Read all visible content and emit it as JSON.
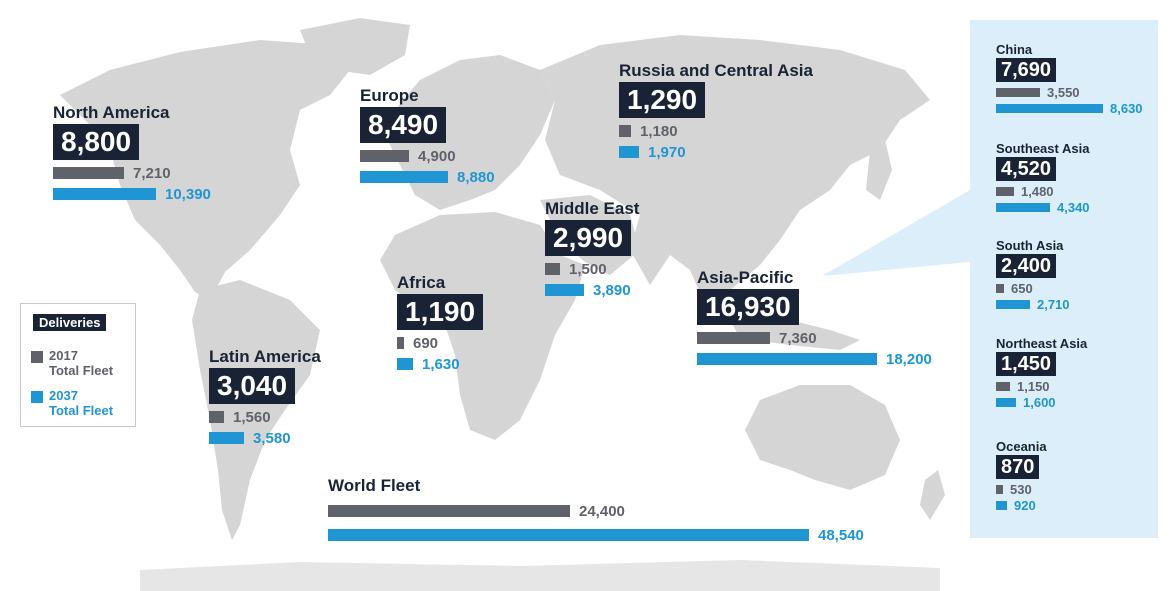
{
  "legend": {
    "title": "Deliveries",
    "fleet_2017": {
      "year": "2017",
      "label": "Total Fleet",
      "color": "#5f6269"
    },
    "fleet_2037": {
      "year": "2037",
      "label": "Total Fleet",
      "color": "#1f96d3"
    }
  },
  "regions": [
    {
      "id": "north-america",
      "name": "North America",
      "deliveries": "8,800",
      "fleet_2017": 7210,
      "fleet_2017_label": "7,210",
      "fleet_2037": 10390,
      "fleet_2037_label": "10,390"
    },
    {
      "id": "europe",
      "name": "Europe",
      "deliveries": "8,490",
      "fleet_2017": 4900,
      "fleet_2017_label": "4,900",
      "fleet_2037": 8880,
      "fleet_2037_label": "8,880"
    },
    {
      "id": "russia-central-asia",
      "name": "Russia and Central Asia",
      "deliveries": "1,290",
      "fleet_2017": 1180,
      "fleet_2017_label": "1,180",
      "fleet_2037": 1970,
      "fleet_2037_label": "1,970"
    },
    {
      "id": "middle-east",
      "name": "Middle East",
      "deliveries": "2,990",
      "fleet_2017": 1500,
      "fleet_2017_label": "1,500",
      "fleet_2037": 3890,
      "fleet_2037_label": "3,890"
    },
    {
      "id": "africa",
      "name": "Africa",
      "deliveries": "1,190",
      "fleet_2017": 690,
      "fleet_2017_label": "690",
      "fleet_2037": 1630,
      "fleet_2037_label": "1,630"
    },
    {
      "id": "latin-america",
      "name": "Latin America",
      "deliveries": "3,040",
      "fleet_2017": 1560,
      "fleet_2017_label": "1,560",
      "fleet_2037": 3580,
      "fleet_2037_label": "3,580"
    },
    {
      "id": "asia-pacific",
      "name": "Asia-Pacific",
      "deliveries": "16,930",
      "fleet_2017": 7360,
      "fleet_2017_label": "7,360",
      "fleet_2037": 18200,
      "fleet_2037_label": "18,200"
    }
  ],
  "world": {
    "name": "World Fleet",
    "fleet_2017": 24400,
    "fleet_2017_label": "24,400",
    "fleet_2037": 48540,
    "fleet_2037_label": "48,540"
  },
  "subregions": [
    {
      "id": "china",
      "name": "China",
      "deliveries": "7,690",
      "fleet_2017": 3550,
      "fleet_2017_label": "3,550",
      "fleet_2037": 8630,
      "fleet_2037_label": "8,630"
    },
    {
      "id": "southeast-asia",
      "name": "Southeast Asia",
      "deliveries": "4,520",
      "fleet_2017": 1480,
      "fleet_2017_label": "1,480",
      "fleet_2037": 4340,
      "fleet_2037_label": "4,340"
    },
    {
      "id": "south-asia",
      "name": "South Asia",
      "deliveries": "2,400",
      "fleet_2017": 650,
      "fleet_2017_label": "650",
      "fleet_2037": 2710,
      "fleet_2037_label": "2,710"
    },
    {
      "id": "northeast-asia",
      "name": "Northeast Asia",
      "deliveries": "1,450",
      "fleet_2017": 1150,
      "fleet_2017_label": "1,150",
      "fleet_2037": 1600,
      "fleet_2037_label": "1,600"
    },
    {
      "id": "oceania",
      "name": "Oceania",
      "deliveries": "870",
      "fleet_2017": 530,
      "fleet_2017_label": "530",
      "fleet_2037": 920,
      "fleet_2037_label": "920"
    }
  ]
}
